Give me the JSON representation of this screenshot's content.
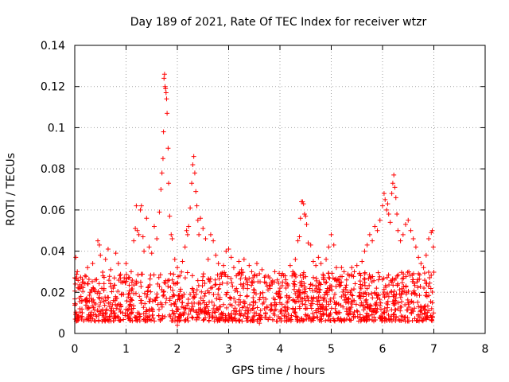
{
  "chart_data": {
    "type": "scatter",
    "title": "Day 189 of 2021, Rate Of TEC Index for receiver wtzr",
    "xlabel": "GPS time / hours",
    "ylabel": "ROTI / TECUs",
    "xlim": [
      0,
      8
    ],
    "ylim": [
      0,
      0.14
    ],
    "xticks": [
      "0",
      "1",
      "2",
      "3",
      "4",
      "5",
      "6",
      "7",
      "8"
    ],
    "yticks": [
      "0",
      "0.02",
      "0.04",
      "0.06",
      "0.08",
      "0.1",
      "0.12",
      "0.14"
    ],
    "grid": true,
    "marker": "+",
    "color": "#ff0000",
    "series": [
      {
        "name": "ROTI",
        "points": [
          [
            0.02,
            0.037
          ],
          [
            0.05,
            0.03
          ],
          [
            0.08,
            0.022
          ],
          [
            0.12,
            0.018
          ],
          [
            0.15,
            0.025
          ],
          [
            0.2,
            0.028
          ],
          [
            0.25,
            0.032
          ],
          [
            0.3,
            0.02
          ],
          [
            0.35,
            0.034
          ],
          [
            0.4,
            0.026
          ],
          [
            0.45,
            0.045
          ],
          [
            0.48,
            0.043
          ],
          [
            0.5,
            0.038
          ],
          [
            0.55,
            0.028
          ],
          [
            0.6,
            0.036
          ],
          [
            0.65,
            0.041
          ],
          [
            0.7,
            0.031
          ],
          [
            0.75,
            0.022
          ],
          [
            0.8,
            0.039
          ],
          [
            0.85,
            0.034
          ],
          [
            0.9,
            0.025
          ],
          [
            0.95,
            0.019
          ],
          [
            1.0,
            0.034
          ],
          [
            1.05,
            0.027
          ],
          [
            1.1,
            0.03
          ],
          [
            1.15,
            0.045
          ],
          [
            1.18,
            0.051
          ],
          [
            1.2,
            0.062
          ],
          [
            1.22,
            0.05
          ],
          [
            1.25,
            0.048
          ],
          [
            1.28,
            0.06
          ],
          [
            1.3,
            0.062
          ],
          [
            1.33,
            0.047
          ],
          [
            1.35,
            0.04
          ],
          [
            1.4,
            0.056
          ],
          [
            1.45,
            0.042
          ],
          [
            1.5,
            0.039
          ],
          [
            1.55,
            0.052
          ],
          [
            1.6,
            0.046
          ],
          [
            1.65,
            0.059
          ],
          [
            1.68,
            0.07
          ],
          [
            1.7,
            0.078
          ],
          [
            1.72,
            0.085
          ],
          [
            1.73,
            0.098
          ],
          [
            1.74,
            0.124
          ],
          [
            1.75,
            0.126
          ],
          [
            1.76,
            0.12
          ],
          [
            1.77,
            0.119
          ],
          [
            1.78,
            0.117
          ],
          [
            1.79,
            0.114
          ],
          [
            1.8,
            0.107
          ],
          [
            1.82,
            0.09
          ],
          [
            1.83,
            0.073
          ],
          [
            1.85,
            0.057
          ],
          [
            1.88,
            0.048
          ],
          [
            1.9,
            0.046
          ],
          [
            1.95,
            0.036
          ],
          [
            2.0,
            0.032
          ],
          [
            2.05,
            0.028
          ],
          [
            2.1,
            0.035
          ],
          [
            2.15,
            0.042
          ],
          [
            2.18,
            0.05
          ],
          [
            2.2,
            0.048
          ],
          [
            2.22,
            0.052
          ],
          [
            2.25,
            0.061
          ],
          [
            2.28,
            0.073
          ],
          [
            2.3,
            0.082
          ],
          [
            2.32,
            0.086
          ],
          [
            2.34,
            0.078
          ],
          [
            2.36,
            0.069
          ],
          [
            2.38,
            0.062
          ],
          [
            2.4,
            0.055
          ],
          [
            2.42,
            0.048
          ],
          [
            2.45,
            0.056
          ],
          [
            2.5,
            0.051
          ],
          [
            2.55,
            0.046
          ],
          [
            2.6,
            0.036
          ],
          [
            2.65,
            0.048
          ],
          [
            2.7,
            0.045
          ],
          [
            2.75,
            0.038
          ],
          [
            2.8,
            0.034
          ],
          [
            2.85,
            0.029
          ],
          [
            2.9,
            0.033
          ],
          [
            2.95,
            0.04
          ],
          [
            3.0,
            0.041
          ],
          [
            3.05,
            0.037
          ],
          [
            3.1,
            0.032
          ],
          [
            3.15,
            0.028
          ],
          [
            3.2,
            0.035
          ],
          [
            3.25,
            0.031
          ],
          [
            3.3,
            0.036
          ],
          [
            3.35,
            0.026
          ],
          [
            3.4,
            0.033
          ],
          [
            3.45,
            0.03
          ],
          [
            3.5,
            0.028
          ],
          [
            3.55,
            0.034
          ],
          [
            3.6,
            0.029
          ],
          [
            3.65,
            0.031
          ],
          [
            3.7,
            0.025
          ],
          [
            3.75,
            0.023
          ],
          [
            3.8,
            0.027
          ],
          [
            3.85,
            0.024
          ],
          [
            3.9,
            0.03
          ],
          [
            3.95,
            0.026
          ],
          [
            4.0,
            0.022
          ],
          [
            4.05,
            0.025
          ],
          [
            4.1,
            0.028
          ],
          [
            4.15,
            0.024
          ],
          [
            4.2,
            0.033
          ],
          [
            4.25,
            0.03
          ],
          [
            4.3,
            0.036
          ],
          [
            4.35,
            0.045
          ],
          [
            4.38,
            0.047
          ],
          [
            4.4,
            0.056
          ],
          [
            4.42,
            0.064
          ],
          [
            4.44,
            0.064
          ],
          [
            4.46,
            0.063
          ],
          [
            4.48,
            0.058
          ],
          [
            4.5,
            0.057
          ],
          [
            4.52,
            0.053
          ],
          [
            4.55,
            0.044
          ],
          [
            4.6,
            0.043
          ],
          [
            4.65,
            0.035
          ],
          [
            4.7,
            0.033
          ],
          [
            4.75,
            0.037
          ],
          [
            4.8,
            0.034
          ],
          [
            4.85,
            0.028
          ],
          [
            4.9,
            0.036
          ],
          [
            4.95,
            0.042
          ],
          [
            5.0,
            0.048
          ],
          [
            5.05,
            0.043
          ],
          [
            5.1,
            0.032
          ],
          [
            5.15,
            0.026
          ],
          [
            5.2,
            0.032
          ],
          [
            5.25,
            0.03
          ],
          [
            5.3,
            0.026
          ],
          [
            5.35,
            0.028
          ],
          [
            5.4,
            0.032
          ],
          [
            5.45,
            0.03
          ],
          [
            5.5,
            0.033
          ],
          [
            5.55,
            0.029
          ],
          [
            5.6,
            0.035
          ],
          [
            5.65,
            0.04
          ],
          [
            5.7,
            0.043
          ],
          [
            5.75,
            0.048
          ],
          [
            5.8,
            0.045
          ],
          [
            5.85,
            0.052
          ],
          [
            5.9,
            0.05
          ],
          [
            5.95,
            0.055
          ],
          [
            6.0,
            0.062
          ],
          [
            6.03,
            0.068
          ],
          [
            6.05,
            0.065
          ],
          [
            6.08,
            0.06
          ],
          [
            6.1,
            0.063
          ],
          [
            6.12,
            0.058
          ],
          [
            6.15,
            0.054
          ],
          [
            6.18,
            0.068
          ],
          [
            6.2,
            0.073
          ],
          [
            6.22,
            0.077
          ],
          [
            6.24,
            0.071
          ],
          [
            6.26,
            0.066
          ],
          [
            6.28,
            0.058
          ],
          [
            6.3,
            0.05
          ],
          [
            6.35,
            0.045
          ],
          [
            6.4,
            0.048
          ],
          [
            6.45,
            0.053
          ],
          [
            6.5,
            0.055
          ],
          [
            6.55,
            0.05
          ],
          [
            6.6,
            0.046
          ],
          [
            6.65,
            0.042
          ],
          [
            6.7,
            0.037
          ],
          [
            6.75,
            0.034
          ],
          [
            6.8,
            0.032
          ],
          [
            6.85,
            0.038
          ],
          [
            6.9,
            0.046
          ],
          [
            6.95,
            0.049
          ],
          [
            6.97,
            0.05
          ],
          [
            6.99,
            0.042
          ],
          [
            0.1,
            0.012
          ],
          [
            0.3,
            0.009
          ],
          [
            0.5,
            0.015
          ],
          [
            0.7,
            0.011
          ],
          [
            0.9,
            0.013
          ],
          [
            1.1,
            0.01
          ],
          [
            1.3,
            0.016
          ],
          [
            1.5,
            0.012
          ],
          [
            1.7,
            0.014
          ],
          [
            1.9,
            0.011
          ],
          [
            2.1,
            0.015
          ],
          [
            2.3,
            0.013
          ],
          [
            2.5,
            0.016
          ],
          [
            2.7,
            0.012
          ],
          [
            2.9,
            0.014
          ],
          [
            3.1,
            0.011
          ],
          [
            3.3,
            0.013
          ],
          [
            3.5,
            0.01
          ],
          [
            3.7,
            0.012
          ],
          [
            3.9,
            0.011
          ],
          [
            4.1,
            0.013
          ],
          [
            4.3,
            0.01
          ],
          [
            4.5,
            0.012
          ],
          [
            4.7,
            0.011
          ],
          [
            4.9,
            0.013
          ],
          [
            5.1,
            0.01
          ],
          [
            5.3,
            0.012
          ],
          [
            5.5,
            0.011
          ],
          [
            5.7,
            0.013
          ],
          [
            5.9,
            0.012
          ],
          [
            6.1,
            0.014
          ],
          [
            6.3,
            0.012
          ],
          [
            6.5,
            0.015
          ],
          [
            6.7,
            0.013
          ],
          [
            6.9,
            0.011
          ],
          [
            2.0,
            0.004
          ],
          [
            0.4,
            0.006
          ],
          [
            3.6,
            0.005
          ],
          [
            5.2,
            0.006
          ]
        ]
      }
    ]
  }
}
